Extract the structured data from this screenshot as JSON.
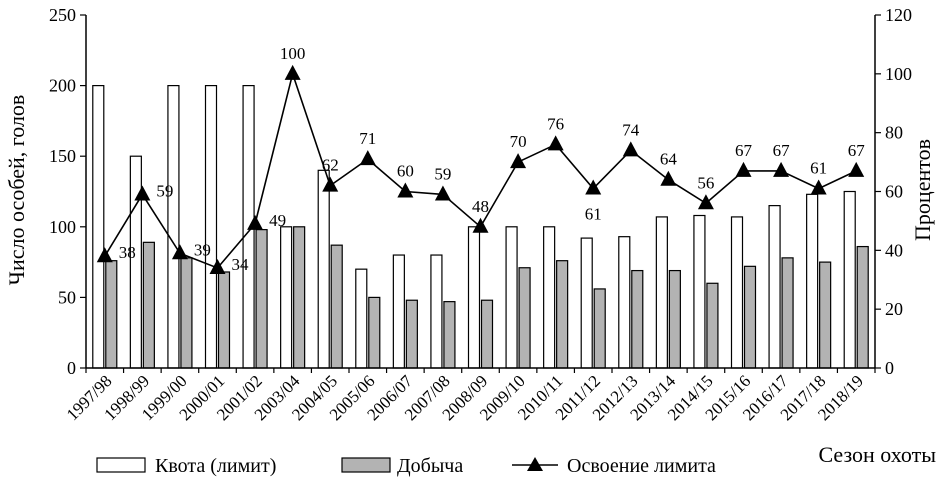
{
  "chart_data": {
    "type": "bar",
    "xlabel": "Сезон охоты",
    "ylabel_left": "Число особей, голов",
    "ylabel_right": "Процентов",
    "ylim_left": [
      0,
      250
    ],
    "yticks_left": [
      0,
      50,
      100,
      150,
      200,
      250
    ],
    "ylim_right": [
      0,
      120
    ],
    "yticks_right": [
      0,
      20,
      40,
      60,
      80,
      100,
      120
    ],
    "categories": [
      "1997/98",
      "1998/99",
      "1999/00",
      "2000/01",
      "2001/02",
      "2003/04",
      "2004/05",
      "2005/06",
      "2006/07",
      "2007/08",
      "2008/09",
      "2009/10",
      "2010/11",
      "2011/12",
      "2012/13",
      "2013/14",
      "2014/15",
      "2015/16",
      "2016/17",
      "2017/18",
      "2018/19"
    ],
    "series": [
      {
        "name": "Квота (лимит)",
        "type": "bar",
        "axis": "left",
        "color": "#ffffff",
        "values": [
          200,
          150,
          200,
          200,
          200,
          100,
          140,
          70,
          80,
          80,
          100,
          100,
          100,
          92,
          93,
          107,
          108,
          107,
          115,
          123,
          125
        ]
      },
      {
        "name": "Добыча",
        "type": "bar",
        "axis": "left",
        "color": "#b3b3b3",
        "values": [
          76,
          89,
          78,
          68,
          98,
          100,
          87,
          50,
          48,
          47,
          48,
          71,
          76,
          56,
          69,
          69,
          60,
          72,
          78,
          75,
          86
        ]
      },
      {
        "name": "Освоение лимита",
        "type": "line",
        "axis": "right",
        "color": "#000000",
        "values": [
          38,
          59,
          39,
          34,
          49,
          100,
          62,
          71,
          60,
          59,
          48,
          70,
          76,
          61,
          74,
          64,
          56,
          67,
          67,
          61,
          67
        ],
        "labels": [
          "38",
          "59",
          "39",
          "34",
          "49",
          "100",
          "62",
          "71",
          "60",
          "59",
          "48",
          "70",
          "76",
          "61",
          "74",
          "64",
          "56",
          "67",
          "67",
          "61",
          "67"
        ]
      }
    ],
    "legend_position": "bottom",
    "grid": false
  }
}
